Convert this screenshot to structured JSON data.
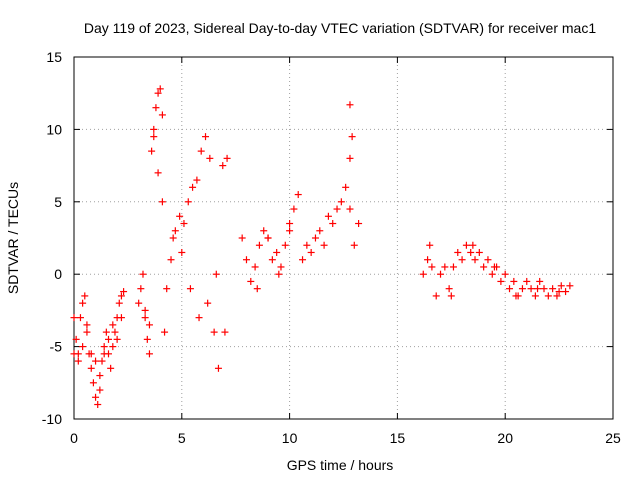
{
  "chart_data": {
    "type": "scatter",
    "title": "Day 119 of 2023, Sidereal Day-to-day VTEC variation (SDTVAR) for receiver mac1",
    "xlabel": "GPS time / hours",
    "ylabel": "SDTVAR / TECUs",
    "xlim": [
      0,
      25
    ],
    "ylim": [
      -10,
      15
    ],
    "xticks": [
      0,
      5,
      10,
      15,
      20,
      25
    ],
    "yticks": [
      -10,
      -5,
      0,
      5,
      10,
      15
    ],
    "grid": true,
    "marker": "+",
    "series": [
      {
        "name": "SDTVAR",
        "color": "#ff0000",
        "x": [
          0.0,
          0.1,
          0.2,
          0.3,
          0.4,
          0.5,
          0.6,
          0.7,
          0.8,
          0.9,
          1.0,
          1.1,
          1.2,
          1.3,
          1.4,
          1.5,
          1.6,
          1.7,
          1.8,
          1.9,
          2.0,
          2.1,
          2.2,
          2.3,
          0.0,
          0.2,
          0.4,
          0.6,
          0.8,
          1.0,
          1.2,
          1.4,
          1.6,
          1.8,
          2.0,
          2.2,
          3.0,
          3.1,
          3.2,
          3.3,
          3.4,
          3.5,
          3.6,
          3.7,
          3.8,
          3.9,
          4.0,
          4.1,
          4.2,
          3.3,
          3.5,
          3.7,
          3.9,
          4.1,
          4.3,
          4.5,
          4.7,
          4.9,
          5.1,
          5.3,
          5.5,
          5.7,
          5.9,
          6.1,
          6.3,
          6.5,
          6.7,
          6.9,
          7.1,
          4.6,
          5.0,
          5.4,
          5.8,
          6.2,
          6.6,
          7.0,
          7.8,
          8.0,
          8.2,
          8.4,
          8.6,
          8.8,
          9.0,
          9.2,
          9.4,
          9.6,
          9.8,
          10.0,
          10.2,
          10.4,
          8.5,
          9.0,
          9.5,
          10.0,
          10.6,
          10.8,
          11.0,
          11.2,
          11.4,
          11.6,
          11.8,
          12.0,
          12.2,
          12.4,
          12.6,
          12.8,
          13.0,
          13.2,
          12.8,
          12.9,
          12.8,
          16.2,
          16.4,
          16.6,
          16.8,
          17.0,
          17.2,
          17.4,
          17.6,
          17.8,
          18.0,
          18.2,
          18.4,
          18.6,
          18.8,
          19.0,
          19.2,
          19.4,
          19.6,
          19.8,
          20.0,
          20.2,
          20.4,
          20.6,
          20.8,
          21.0,
          21.2,
          21.4,
          21.6,
          21.8,
          22.0,
          22.2,
          22.4,
          22.6,
          22.8,
          23.0,
          16.5,
          17.5,
          18.5,
          19.5,
          20.5,
          21.5,
          22.5
        ],
        "y": [
          -3.0,
          -4.5,
          -5.5,
          -3.0,
          -2.0,
          -1.5,
          -3.5,
          -5.5,
          -6.5,
          -7.5,
          -8.5,
          -9.0,
          -8.0,
          -6.0,
          -5.0,
          -4.0,
          -5.5,
          -6.5,
          -5.0,
          -4.0,
          -3.0,
          -2.0,
          -1.5,
          -1.2,
          -5.5,
          -6.0,
          -5.0,
          -4.0,
          -5.5,
          -6.0,
          -7.0,
          -5.5,
          -4.5,
          -3.5,
          -4.5,
          -3.0,
          -2.0,
          -1.0,
          0.0,
          -3.0,
          -4.5,
          -5.5,
          8.5,
          10.0,
          11.5,
          12.5,
          12.8,
          11.0,
          -4.0,
          -2.5,
          -3.5,
          9.5,
          7.0,
          5.0,
          -1.0,
          1.0,
          3.0,
          4.0,
          3.5,
          5.0,
          6.0,
          6.5,
          8.5,
          9.5,
          8.0,
          -4.0,
          -6.5,
          7.5,
          8.0,
          2.5,
          1.5,
          -1.0,
          -3.0,
          -2.0,
          0.0,
          -4.0,
          2.5,
          1.0,
          -0.5,
          0.5,
          2.0,
          3.0,
          2.5,
          1.0,
          1.5,
          0.5,
          2.0,
          3.5,
          4.5,
          5.5,
          -1.0,
          2.5,
          0.0,
          3.0,
          1.0,
          2.0,
          1.5,
          2.5,
          3.0,
          2.0,
          4.0,
          3.5,
          4.5,
          5.0,
          6.0,
          4.5,
          2.0,
          3.5,
          11.7,
          9.5,
          8.0,
          0.0,
          1.0,
          0.5,
          -1.5,
          0.0,
          0.5,
          -1.0,
          0.5,
          1.5,
          1.0,
          2.0,
          1.5,
          1.0,
          1.5,
          0.5,
          1.0,
          0.0,
          0.5,
          -0.5,
          0.0,
          -1.0,
          -0.5,
          -1.5,
          -1.0,
          -0.5,
          -1.0,
          -1.5,
          -0.5,
          -1.0,
          -1.5,
          -1.0,
          -1.5,
          -0.8,
          -1.2,
          -0.8,
          2.0,
          -1.5,
          2.0,
          0.5,
          -1.5,
          -1.0,
          -1.2
        ]
      }
    ]
  }
}
